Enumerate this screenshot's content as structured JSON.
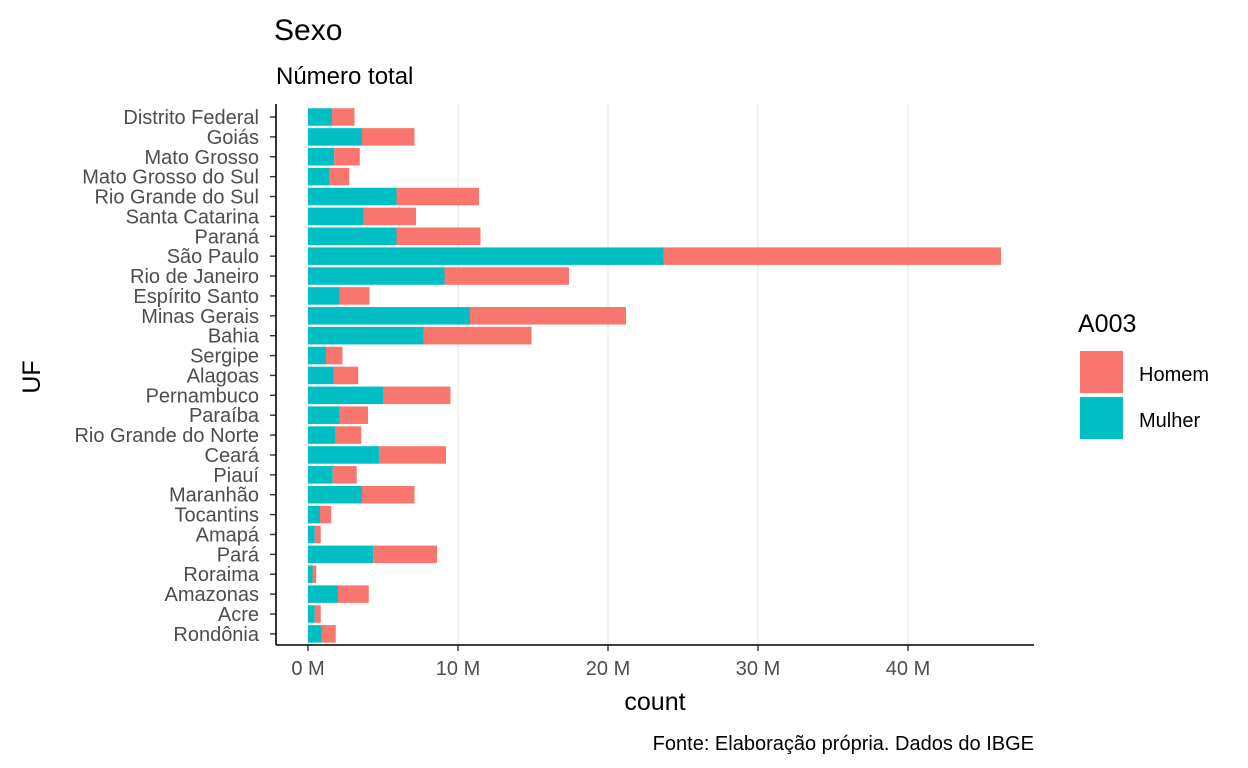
{
  "chart_data": {
    "type": "bar",
    "orientation": "horizontal",
    "stacked": true,
    "title": "Sexo",
    "subtitle": "Número total",
    "xlabel": "count",
    "ylabel": "UF",
    "caption": "Fonte: Elaboração própria. Dados do IBGE",
    "xlim": [
      0,
      48000000
    ],
    "x_ticks": [
      0,
      10000000,
      20000000,
      30000000,
      40000000
    ],
    "x_tick_labels": [
      "0 M",
      "10 M",
      "20 M",
      "30 M",
      "40 M"
    ],
    "grid": "vertical major",
    "legend": {
      "title": "A003",
      "position": "right",
      "entries": [
        {
          "name": "Homem",
          "color": "#F8766D"
        },
        {
          "name": "Mulher",
          "color": "#00BFC4"
        }
      ]
    },
    "categories": [
      "Distrito Federal",
      "Goiás",
      "Mato Grosso",
      "Mato Grosso do Sul",
      "Rio Grande do Sul",
      "Santa Catarina",
      "Paraná",
      "São Paulo",
      "Rio de Janeiro",
      "Espírito Santo",
      "Minas Gerais",
      "Bahia",
      "Sergipe",
      "Alagoas",
      "Pernambuco",
      "Paraíba",
      "Rio Grande do Norte",
      "Ceará",
      "Piauí",
      "Maranhão",
      "Tocantins",
      "Amapá",
      "Pará",
      "Roraima",
      "Amazonas",
      "Acre",
      "Rondônia"
    ],
    "series": [
      {
        "name": "Mulher",
        "color": "#00BFC4",
        "values": [
          1600000,
          3600000,
          1750000,
          1400000,
          5900000,
          3700000,
          5900000,
          23700000,
          9100000,
          2100000,
          10800000,
          7700000,
          1200000,
          1700000,
          5000000,
          2100000,
          1800000,
          4750000,
          1650000,
          3600000,
          800000,
          450000,
          4350000,
          300000,
          2000000,
          450000,
          900000
        ]
      },
      {
        "name": "Homem",
        "color": "#F8766D",
        "values": [
          1500000,
          3500000,
          1700000,
          1350000,
          5500000,
          3500000,
          5600000,
          22500000,
          8300000,
          2000000,
          10400000,
          7200000,
          1100000,
          1650000,
          4500000,
          1900000,
          1750000,
          4450000,
          1600000,
          3500000,
          750000,
          400000,
          4250000,
          250000,
          2050000,
          400000,
          950000
        ]
      }
    ]
  }
}
